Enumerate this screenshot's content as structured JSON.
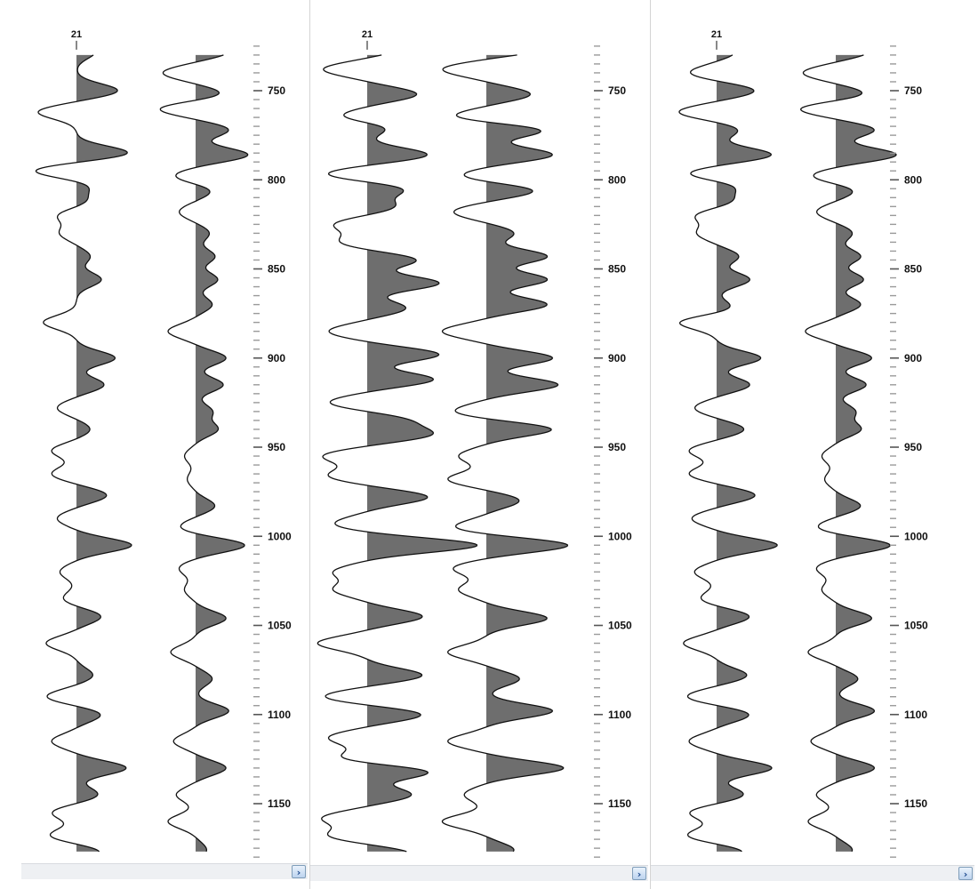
{
  "chart_data": {
    "type": "line",
    "description_ylabel": "",
    "ylim": [
      720,
      1180
    ],
    "depth_ticks": [
      750,
      800,
      850,
      900,
      950,
      1000,
      1050,
      1100,
      1150
    ],
    "fill": "positive amplitude (variable-area wiggle)",
    "panels": [
      {
        "traces": [
          {
            "label": "21",
            "has_label": true,
            "events": [
              [
                728,
                0.35
              ],
              [
                750,
                0.75
              ],
              [
                762,
                -0.7
              ],
              [
                785,
                0.95
              ],
              [
                795,
                -0.8
              ],
              [
                803,
                0.25
              ],
              [
                812,
                0.2
              ],
              [
                820,
                -0.35
              ],
              [
                830,
                -0.3
              ],
              [
                843,
                0.25
              ],
              [
                856,
                0.45
              ],
              [
                880,
                -0.6
              ],
              [
                900,
                0.7
              ],
              [
                915,
                0.5
              ],
              [
                928,
                -0.35
              ],
              [
                940,
                0.25
              ],
              [
                952,
                -0.45
              ],
              [
                965,
                -0.45
              ],
              [
                977,
                0.55
              ],
              [
                990,
                -0.35
              ],
              [
                1005,
                1.0
              ],
              [
                1020,
                -0.3
              ],
              [
                1035,
                -0.25
              ],
              [
                1045,
                0.45
              ],
              [
                1060,
                -0.55
              ],
              [
                1078,
                0.3
              ],
              [
                1090,
                -0.55
              ],
              [
                1100,
                0.45
              ],
              [
                1115,
                -0.45
              ],
              [
                1130,
                0.9
              ],
              [
                1145,
                0.4
              ],
              [
                1155,
                -0.45
              ],
              [
                1168,
                -0.5
              ],
              [
                1177,
                0.45
              ]
            ]
          },
          {
            "label": "",
            "has_label": false,
            "events": [
              [
                728,
                0.6
              ],
              [
                740,
                -0.6
              ],
              [
                752,
                0.5
              ],
              [
                760,
                -0.7
              ],
              [
                772,
                0.6
              ],
              [
                786,
                0.95
              ],
              [
                798,
                -0.4
              ],
              [
                806,
                0.3
              ],
              [
                818,
                -0.3
              ],
              [
                830,
                0.25
              ],
              [
                843,
                0.35
              ],
              [
                856,
                0.4
              ],
              [
                870,
                0.3
              ],
              [
                885,
                -0.5
              ],
              [
                900,
                0.55
              ],
              [
                915,
                0.5
              ],
              [
                930,
                0.3
              ],
              [
                940,
                0.4
              ],
              [
                955,
                -0.2
              ],
              [
                968,
                -0.15
              ],
              [
                983,
                0.35
              ],
              [
                995,
                -0.3
              ],
              [
                1005,
                0.9
              ],
              [
                1018,
                -0.3
              ],
              [
                1030,
                -0.2
              ],
              [
                1046,
                0.55
              ],
              [
                1065,
                -0.45
              ],
              [
                1080,
                0.3
              ],
              [
                1098,
                0.6
              ],
              [
                1115,
                -0.4
              ],
              [
                1130,
                0.55
              ],
              [
                1145,
                -0.35
              ],
              [
                1160,
                -0.5
              ],
              [
                1176,
                0.2
              ]
            ]
          }
        ]
      },
      {
        "traces": [
          {
            "label": "21",
            "has_label": true,
            "events": [
              [
                726,
                0.6
              ],
              [
                738,
                -0.8
              ],
              [
                752,
                0.9
              ],
              [
                765,
                -0.6
              ],
              [
                770,
                0.5
              ],
              [
                786,
                1.1
              ],
              [
                797,
                -0.8
              ],
              [
                805,
                0.7
              ],
              [
                815,
                0.5
              ],
              [
                825,
                -0.6
              ],
              [
                835,
                -0.5
              ],
              [
                845,
                0.9
              ],
              [
                858,
                1.3
              ],
              [
                872,
                0.7
              ],
              [
                885,
                -0.7
              ],
              [
                898,
                1.3
              ],
              [
                912,
                1.2
              ],
              [
                925,
                -0.7
              ],
              [
                935,
                0.7
              ],
              [
                943,
                1.1
              ],
              [
                955,
                -0.8
              ],
              [
                966,
                -0.7
              ],
              [
                978,
                1.1
              ],
              [
                993,
                -0.6
              ],
              [
                1005,
                2.0
              ],
              [
                1020,
                -0.6
              ],
              [
                1030,
                -0.6
              ],
              [
                1045,
                1.0
              ],
              [
                1060,
                -0.9
              ],
              [
                1078,
                1.0
              ],
              [
                1090,
                -0.8
              ],
              [
                1100,
                1.0
              ],
              [
                1113,
                -0.7
              ],
              [
                1125,
                -0.6
              ],
              [
                1132,
                1.2
              ],
              [
                1145,
                0.8
              ],
              [
                1158,
                -0.8
              ],
              [
                1168,
                -0.7
              ],
              [
                1178,
                0.8
              ]
            ]
          },
          {
            "label": "",
            "has_label": false,
            "events": [
              [
                726,
                1.1
              ],
              [
                738,
                -0.8
              ],
              [
                752,
                0.8
              ],
              [
                765,
                -0.7
              ],
              [
                772,
                1.1
              ],
              [
                786,
                1.2
              ],
              [
                798,
                -0.5
              ],
              [
                806,
                0.9
              ],
              [
                818,
                -0.6
              ],
              [
                830,
                0.5
              ],
              [
                843,
                1.1
              ],
              [
                856,
                1.1
              ],
              [
                870,
                1.1
              ],
              [
                885,
                -0.8
              ],
              [
                900,
                1.2
              ],
              [
                915,
                1.3
              ],
              [
                930,
                -0.6
              ],
              [
                940,
                1.2
              ],
              [
                955,
                -0.5
              ],
              [
                968,
                -0.7
              ],
              [
                980,
                0.6
              ],
              [
                995,
                -0.6
              ],
              [
                1005,
                1.5
              ],
              [
                1018,
                -0.6
              ],
              [
                1030,
                -0.5
              ],
              [
                1046,
                1.1
              ],
              [
                1065,
                -0.7
              ],
              [
                1080,
                0.6
              ],
              [
                1098,
                1.2
              ],
              [
                1115,
                -0.7
              ],
              [
                1130,
                1.4
              ],
              [
                1145,
                -0.4
              ],
              [
                1160,
                -0.8
              ],
              [
                1176,
                0.5
              ]
            ]
          }
        ]
      },
      {
        "traces": [
          {
            "label": "21",
            "has_label": true,
            "events": [
              [
                728,
                0.35
              ],
              [
                740,
                -0.5
              ],
              [
                750,
                0.7
              ],
              [
                762,
                -0.7
              ],
              [
                772,
                0.4
              ],
              [
                786,
                1.0
              ],
              [
                797,
                -0.6
              ],
              [
                803,
                0.4
              ],
              [
                812,
                0.3
              ],
              [
                820,
                -0.4
              ],
              [
                830,
                -0.35
              ],
              [
                843,
                0.4
              ],
              [
                856,
                0.6
              ],
              [
                872,
                0.3
              ],
              [
                880,
                -0.7
              ],
              [
                900,
                0.8
              ],
              [
                915,
                0.6
              ],
              [
                928,
                -0.4
              ],
              [
                940,
                0.5
              ],
              [
                952,
                -0.5
              ],
              [
                965,
                -0.5
              ],
              [
                977,
                0.7
              ],
              [
                990,
                -0.45
              ],
              [
                1005,
                1.1
              ],
              [
                1020,
                -0.4
              ],
              [
                1035,
                -0.3
              ],
              [
                1045,
                0.6
              ],
              [
                1060,
                -0.6
              ],
              [
                1078,
                0.55
              ],
              [
                1090,
                -0.55
              ],
              [
                1100,
                0.6
              ],
              [
                1115,
                -0.5
              ],
              [
                1130,
                1.0
              ],
              [
                1145,
                0.5
              ],
              [
                1155,
                -0.5
              ],
              [
                1168,
                -0.55
              ],
              [
                1177,
                0.5
              ]
            ]
          },
          {
            "label": "",
            "has_label": false,
            "events": [
              [
                728,
                0.6
              ],
              [
                740,
                -0.6
              ],
              [
                752,
                0.55
              ],
              [
                760,
                -0.7
              ],
              [
                772,
                0.7
              ],
              [
                786,
                1.1
              ],
              [
                798,
                -0.45
              ],
              [
                806,
                0.35
              ],
              [
                818,
                -0.35
              ],
              [
                830,
                0.3
              ],
              [
                843,
                0.45
              ],
              [
                856,
                0.5
              ],
              [
                870,
                0.45
              ],
              [
                885,
                -0.55
              ],
              [
                900,
                0.65
              ],
              [
                915,
                0.55
              ],
              [
                930,
                0.35
              ],
              [
                940,
                0.45
              ],
              [
                955,
                -0.25
              ],
              [
                968,
                -0.2
              ],
              [
                983,
                0.45
              ],
              [
                995,
                -0.35
              ],
              [
                1005,
                1.0
              ],
              [
                1018,
                -0.35
              ],
              [
                1030,
                -0.25
              ],
              [
                1046,
                0.65
              ],
              [
                1065,
                -0.5
              ],
              [
                1080,
                0.4
              ],
              [
                1098,
                0.7
              ],
              [
                1115,
                -0.45
              ],
              [
                1130,
                0.7
              ],
              [
                1145,
                -0.35
              ],
              [
                1160,
                -0.5
              ],
              [
                1176,
                0.3
              ]
            ]
          }
        ]
      }
    ]
  },
  "ui": {
    "scroll_glyph": "›"
  }
}
